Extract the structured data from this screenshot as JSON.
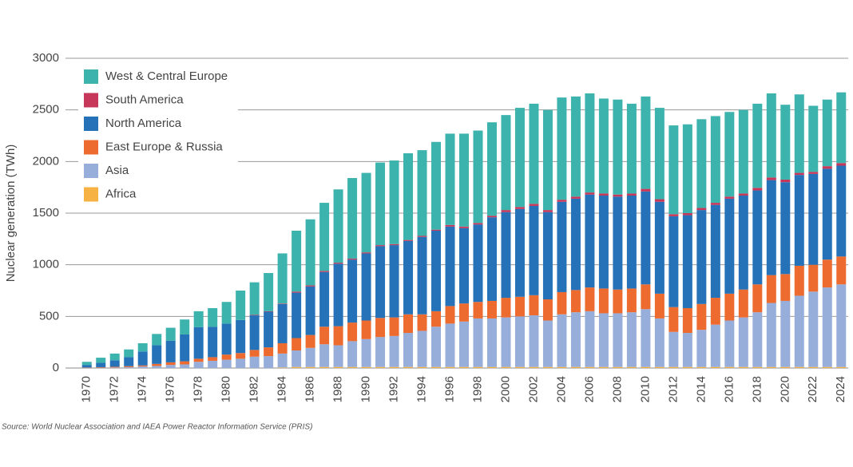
{
  "chart_data": {
    "type": "stacked-bar",
    "y_label": "Nuclear generation (TWh)",
    "source": "Source: World Nuclear Association and IAEA Power Reactor Information Service (PRIS)",
    "categories": [
      "1970",
      null,
      "1972",
      null,
      "1974",
      null,
      "1976",
      null,
      "1978",
      null,
      "1980",
      null,
      "1982",
      null,
      "1984",
      null,
      "1986",
      null,
      "1988",
      null,
      "1990",
      null,
      "1992",
      null,
      "1994",
      null,
      "1996",
      null,
      "1998",
      null,
      "2000",
      null,
      "2002",
      null,
      "2004",
      null,
      "2006",
      null,
      "2008",
      null,
      "2010",
      null,
      "2012",
      null,
      "2014",
      null,
      "2016",
      null,
      "2018",
      null,
      "2020",
      null,
      "2022",
      null,
      "2024"
    ],
    "ylim": [
      0,
      3000
    ],
    "yticks": [
      0,
      500,
      1000,
      1500,
      2000,
      2500,
      3000
    ],
    "grid": true,
    "series": [
      {
        "name": "Africa",
        "color": "#f6b343",
        "values": [
          0,
          0,
          0,
          0,
          0,
          0,
          0,
          0,
          0,
          0,
          0,
          0,
          0,
          0,
          5,
          10,
          10,
          10,
          10,
          10,
          10,
          10,
          10,
          10,
          10,
          10,
          10,
          10,
          10,
          10,
          10,
          10,
          10,
          10,
          10,
          10,
          10,
          10,
          10,
          10,
          10,
          10,
          10,
          10,
          10,
          10,
          10,
          10,
          10,
          10,
          10,
          10,
          10,
          10,
          10
        ]
      },
      {
        "name": "Asia",
        "color": "#97aedb",
        "values": [
          2,
          3,
          5,
          8,
          15,
          20,
          30,
          35,
          60,
          70,
          80,
          90,
          110,
          115,
          135,
          160,
          185,
          220,
          210,
          250,
          270,
          290,
          300,
          330,
          350,
          390,
          420,
          440,
          470,
          470,
          480,
          490,
          500,
          450,
          510,
          530,
          540,
          520,
          520,
          530,
          560,
          470,
          340,
          330,
          360,
          410,
          450,
          480,
          530,
          620,
          640,
          690,
          730,
          770,
          800
        ]
      },
      {
        "name": "East Europe & Russia",
        "color": "#ee6b2f",
        "values": [
          3,
          5,
          7,
          10,
          10,
          20,
          25,
          30,
          30,
          35,
          50,
          55,
          65,
          85,
          100,
          120,
          125,
          170,
          185,
          180,
          180,
          185,
          180,
          180,
          160,
          150,
          170,
          175,
          160,
          170,
          190,
          190,
          195,
          205,
          215,
          215,
          230,
          240,
          230,
          230,
          240,
          240,
          240,
          240,
          250,
          260,
          260,
          270,
          270,
          270,
          260,
          290,
          260,
          270,
          270
        ]
      },
      {
        "name": "North America",
        "color": "#2572b8",
        "values": [
          25,
          42,
          63,
          87,
          135,
          180,
          210,
          260,
          305,
          295,
          300,
          320,
          335,
          345,
          380,
          440,
          470,
          530,
          605,
          610,
          650,
          695,
          700,
          710,
          750,
          780,
          770,
          730,
          750,
          810,
          830,
          850,
          865,
          845,
          875,
          885,
          900,
          900,
          900,
          900,
          900,
          890,
          880,
          900,
          910,
          900,
          920,
          910,
          910,
          920,
          890,
          880,
          880,
          880,
          880
        ]
      },
      {
        "name": "South America",
        "color": "#c7375a",
        "values": [
          0,
          0,
          0,
          0,
          0,
          0,
          0,
          0,
          0,
          0,
          0,
          0,
          5,
          5,
          5,
          10,
          10,
          10,
          10,
          10,
          10,
          10,
          10,
          10,
          10,
          10,
          15,
          15,
          15,
          15,
          20,
          20,
          20,
          20,
          20,
          20,
          20,
          20,
          20,
          20,
          25,
          25,
          20,
          20,
          20,
          20,
          20,
          20,
          25,
          25,
          25,
          20,
          20,
          25,
          25
        ]
      },
      {
        "name": "West & Central Europe",
        "color": "#3db3ae",
        "values": [
          30,
          50,
          65,
          75,
          80,
          110,
          125,
          145,
          155,
          180,
          210,
          285,
          315,
          370,
          485,
          590,
          640,
          660,
          710,
          780,
          770,
          800,
          810,
          840,
          830,
          850,
          885,
          900,
          895,
          905,
          920,
          960,
          970,
          970,
          990,
          970,
          960,
          920,
          920,
          870,
          895,
          885,
          860,
          860,
          860,
          840,
          820,
          810,
          815,
          815,
          725,
          760,
          640,
          645,
          685
        ]
      }
    ]
  }
}
